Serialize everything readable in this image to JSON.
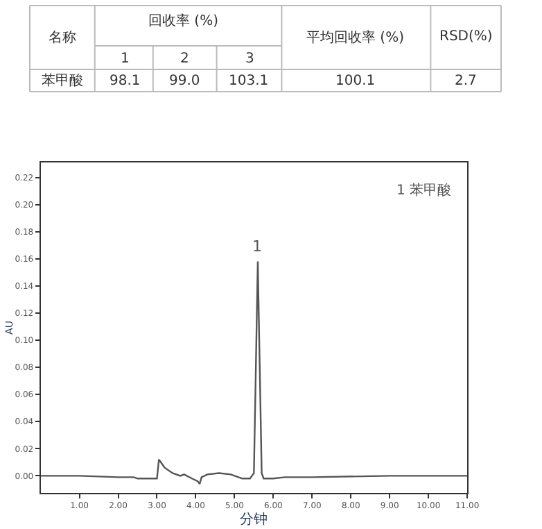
{
  "chart_data": [
    {
      "type": "other",
      "annotations": [
        "名称",
        "回收率 (%)",
        "1",
        "2",
        "3",
        "平均回收率 (%)",
        "RSD(%)",
        "苯甲酸",
        "98.1",
        "99.0",
        "103.1",
        "100.1",
        "2.7"
      ]
    },
    {
      "type": "line",
      "xlabel": "分钟",
      "ylabel": "AU",
      "color": "#555555",
      "marker": "none",
      "line_style": "solid",
      "x": [
        0,
        1,
        2,
        2.4,
        2.5,
        3.0,
        3.05,
        3.2,
        3.4,
        3.6,
        3.7,
        3.9,
        4.05,
        4.1,
        4.15,
        4.3,
        4.6,
        4.9,
        5.2,
        5.4,
        5.5,
        5.6,
        5.7,
        5.75,
        6.0,
        6.3,
        7.0,
        9.0,
        11.0
      ],
      "values": [
        0.0,
        0.0,
        -0.001,
        -0.001,
        -0.002,
        -0.002,
        0.012,
        0.006,
        0.002,
        0.0,
        0.001,
        -0.002,
        -0.004,
        -0.006,
        -0.001,
        0.001,
        0.002,
        0.001,
        -0.002,
        -0.002,
        0.002,
        0.158,
        0.002,
        -0.002,
        -0.002,
        -0.001,
        -0.001,
        0.0,
        0.0
      ],
      "xlim": [
        0,
        11
      ],
      "ylim": [
        -0.0126,
        0.231
      ],
      "xticks": [
        {
          "value": 1,
          "label": "1.00"
        },
        {
          "value": 2,
          "label": "2.00"
        },
        {
          "value": 3,
          "label": "3.00"
        },
        {
          "value": 4,
          "label": "4.00"
        },
        {
          "value": 5,
          "label": "5.00"
        },
        {
          "value": 6,
          "label": "6.00"
        },
        {
          "value": 7,
          "label": "7.00"
        },
        {
          "value": 8,
          "label": "8.00"
        },
        {
          "value": 9,
          "label": "9.00"
        },
        {
          "value": 10,
          "label": "10.00"
        },
        {
          "value": 11,
          "label": "11.00"
        }
      ],
      "yticks": [
        {
          "value": 0,
          "label": "0.00"
        },
        {
          "value": 0.02,
          "label": "0.02"
        },
        {
          "value": 0.04,
          "label": "0.04"
        },
        {
          "value": 0.06,
          "label": "0.06"
        },
        {
          "value": 0.08,
          "label": "0.08"
        },
        {
          "value": 0.1,
          "label": "0.10"
        },
        {
          "value": 0.12,
          "label": "0.12"
        },
        {
          "value": 0.14,
          "label": "0.14"
        },
        {
          "value": 0.16,
          "label": "0.16"
        },
        {
          "value": 0.18,
          "label": "0.18"
        },
        {
          "value": 0.2,
          "label": "0.20"
        },
        {
          "value": 0.22,
          "label": "0.22"
        }
      ],
      "annotations": [
        {
          "text": "1",
          "x": 5.6,
          "y": 0.158
        },
        "1 苯甲酸"
      ]
    }
  ]
}
